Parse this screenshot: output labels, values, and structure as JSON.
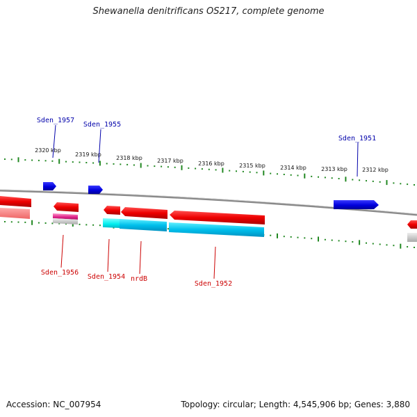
{
  "title": "Shewanella denitrificans OS217, complete genome",
  "footer": {
    "accession": "Accession: NC_007954",
    "summary": "Topology: circular; Length: 4,545,906 bp; Genes: 3,880"
  },
  "colors": {
    "forward_gene": "#0000dd",
    "reverse_gene": "#ee0000",
    "rna": "#00c8e8",
    "pseudo": "#cc3399",
    "tick": "#228822",
    "backbone": "#888888",
    "label_forward": "#0000aa",
    "label_reverse": "#cc0000"
  },
  "scale_labels": [
    "2320 kbp",
    "2319 kbp",
    "2318 kbp",
    "2317 kbp",
    "2316 kbp",
    "2315 kbp",
    "2314 kbp",
    "2313 kbp",
    "2312 kbp"
  ],
  "forward_labels": [
    "Sden_1957",
    "Sden_1955",
    "Sden_1951"
  ],
  "reverse_labels": [
    "Sden_1956",
    "Sden_1954",
    "nrdB",
    "Sden_1952"
  ]
}
